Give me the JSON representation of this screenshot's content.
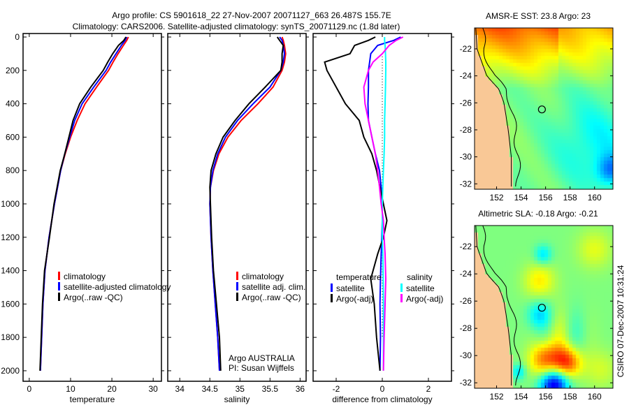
{
  "title_line1": "Argo profile: CS 5901618_22 27-Nov-2007 20071127_663 26.487S 155.7E",
  "title_line2": "Climatology: CARS2006. Satellite-adjusted climatology: synTS_20071129.nc (1.8d later)",
  "footer_stamp": "CSIRO 07-Dec-2007 10:31:24",
  "colors": {
    "climatology": "#ff0000",
    "satellite": "#0000ff",
    "argo": "#000000",
    "sal_satellite": "#00ffff",
    "sal_argo": "#ff00ff",
    "land": "#f9c896"
  },
  "chart_data": [
    {
      "type": "line",
      "id": "temperature",
      "xlabel": "temperature",
      "ylabel": "",
      "xlim": [
        -1.5,
        32
      ],
      "ylim": [
        2063,
        -21
      ],
      "xticks": [
        "0",
        "10",
        "20",
        "30"
      ],
      "xtick_values": [
        0,
        10,
        20,
        30
      ],
      "yticks": [
        "0",
        "200",
        "400",
        "600",
        "800",
        "1000",
        "1200",
        "1400",
        "1600",
        "1800",
        "2000"
      ],
      "ytick_values": [
        0,
        200,
        400,
        600,
        800,
        1000,
        1200,
        1400,
        1600,
        1800,
        2000
      ],
      "legend": [
        "climatology",
        "satellite-adjusted climatology",
        "Argo(..raw -QC)"
      ],
      "depth": [
        0,
        20,
        50,
        100,
        150,
        200,
        300,
        400,
        500,
        600,
        700,
        800,
        1000,
        1200,
        1400,
        1600,
        1800,
        2000
      ],
      "series": [
        {
          "name": "climatology",
          "values": [
            24.0,
            23.6,
            22.8,
            21.5,
            20.3,
            19.2,
            16.3,
            13.5,
            11.6,
            10.0,
            8.7,
            7.6,
            6.1,
            4.8,
            3.8,
            3.3,
            3.0,
            2.7
          ]
        },
        {
          "name": "satellite-adjusted climatology",
          "values": [
            23.6,
            23.2,
            22.3,
            21.0,
            19.7,
            18.6,
            15.6,
            12.8,
            11.0,
            9.8,
            8.6,
            7.6,
            6.1,
            4.8,
            3.8,
            3.3,
            3.0,
            2.7
          ]
        },
        {
          "name": "Argo(..raw -QC)",
          "values": [
            23.4,
            22.9,
            21.6,
            20.2,
            19.0,
            17.9,
            14.9,
            12.2,
            10.6,
            9.6,
            8.6,
            7.5,
            6.0,
            4.9,
            3.7,
            3.2,
            2.9,
            2.6
          ]
        }
      ]
    },
    {
      "type": "line",
      "id": "salinity",
      "xlabel": "salinity",
      "xlim": [
        33.8,
        36.1
      ],
      "ylim": [
        2063,
        -21
      ],
      "xticks": [
        "34",
        "34.5",
        "35",
        "35.5",
        "36"
      ],
      "xtick_values": [
        34,
        34.5,
        35,
        35.5,
        36
      ],
      "legend": [
        "climatology",
        "satellite adj. clim.",
        "Argo(..raw -QC)"
      ],
      "annotation_line1": "Argo AUSTRALIA",
      "annotation_line2": "PI: Susan Wijffels",
      "depth": [
        0,
        20,
        50,
        100,
        150,
        200,
        300,
        400,
        500,
        600,
        700,
        800,
        900,
        1000,
        1200,
        1400,
        1600,
        1800,
        2000
      ],
      "series": [
        {
          "name": "climatology",
          "values": [
            35.7,
            35.72,
            35.74,
            35.76,
            35.74,
            35.7,
            35.55,
            35.3,
            35.02,
            34.8,
            34.65,
            34.56,
            34.51,
            34.5,
            34.52,
            34.55,
            34.59,
            34.63,
            34.66
          ]
        },
        {
          "name": "satellite adj. clim.",
          "values": [
            35.66,
            35.7,
            35.72,
            35.74,
            35.72,
            35.68,
            35.5,
            35.22,
            34.96,
            34.76,
            34.63,
            34.55,
            34.51,
            34.5,
            34.52,
            34.55,
            34.59,
            34.63,
            34.66
          ]
        },
        {
          "name": "Argo(..raw -QC)",
          "values": [
            35.62,
            35.66,
            35.72,
            35.7,
            35.7,
            35.68,
            35.42,
            35.15,
            34.92,
            34.72,
            34.6,
            34.52,
            34.5,
            34.51,
            34.53,
            34.56,
            34.61,
            34.66,
            34.68
          ]
        }
      ]
    },
    {
      "type": "line",
      "id": "difference",
      "xlabel": "difference from climatology",
      "xlim": [
        -3,
        3
      ],
      "ylim": [
        2063,
        -21
      ],
      "xticks": [
        "-2",
        "0",
        "2"
      ],
      "xtick_values": [
        -2,
        0,
        2
      ],
      "legend_temperature_header": "temperature",
      "legend_salinity_header": "salinity",
      "legend": [
        "satellite",
        "Argo(-adj)",
        "satellite",
        "Argo(-adj)"
      ],
      "depth": [
        0,
        20,
        50,
        100,
        150,
        200,
        300,
        400,
        500,
        600,
        700,
        800,
        900,
        1000,
        1100,
        1200,
        1300,
        1450,
        1600,
        1800,
        2000
      ],
      "series": [
        {
          "name": "temperature satellite",
          "values": [
            0.8,
            0.5,
            -0.2,
            -0.5,
            -0.55,
            -0.6,
            -0.6,
            -0.62,
            -0.6,
            -0.45,
            -0.3,
            -0.12,
            -0.05,
            0.0,
            0.0,
            -0.02,
            -0.05,
            -0.08,
            -0.1,
            -0.08,
            -0.1
          ]
        },
        {
          "name": "temperature Argo(-adj)",
          "values": [
            -0.3,
            -0.6,
            -1.2,
            -1.4,
            -2.5,
            -2.4,
            -2.0,
            -1.6,
            -1.0,
            -0.8,
            -0.45,
            -0.25,
            -0.1,
            0.05,
            0.2,
            0.05,
            -0.2,
            -0.5,
            -0.35,
            -0.25,
            -0.1
          ]
        },
        {
          "name": "salinity satellite",
          "values": [
            0.1,
            0.1,
            0.12,
            0.14,
            0.15,
            0.15,
            0.14,
            0.12,
            0.1,
            0.1,
            0.08,
            0.05,
            0.02,
            0.0,
            0.0,
            0.0,
            0.02,
            0.04,
            0.05,
            0.05,
            0.05
          ]
        },
        {
          "name": "salinity Argo(-adj)",
          "values": [
            0.9,
            0.6,
            0.3,
            0.0,
            -0.4,
            -0.6,
            -0.8,
            -0.75,
            -0.6,
            -0.45,
            -0.3,
            -0.2,
            -0.12,
            -0.05,
            0.05,
            0.08,
            0.12,
            0.15,
            0.12,
            0.08,
            0.05
          ]
        }
      ]
    },
    {
      "type": "heatmap",
      "id": "sst_map",
      "title": "AMSR-E SST: 23.8 Argo: 23",
      "xlim": [
        150.2,
        161.5
      ],
      "ylim": [
        -32.4,
        -20.45
      ],
      "xticks": [
        "152",
        "154",
        "156",
        "158",
        "160"
      ],
      "xtick_values": [
        152,
        154,
        156,
        158,
        160
      ],
      "yticks": [
        "-22",
        "-24",
        "-26",
        "-28",
        "-30",
        "-32"
      ],
      "ytick_values": [
        -22,
        -24,
        -26,
        -28,
        -30,
        -32
      ],
      "argo_position": {
        "lon": 155.7,
        "lat": -26.487
      }
    },
    {
      "type": "heatmap",
      "id": "sla_map",
      "title": "Altimetric SLA: -0.18 Argo: -0.21",
      "xlim": [
        150.2,
        161.5
      ],
      "ylim": [
        -32.4,
        -20.45
      ],
      "xticks": [
        "152",
        "154",
        "156",
        "158",
        "160"
      ],
      "xtick_values": [
        152,
        154,
        156,
        158,
        160
      ],
      "yticks": [
        "-22",
        "-24",
        "-26",
        "-28",
        "-30",
        "-32"
      ],
      "ytick_values": [
        -22,
        -24,
        -26,
        -28,
        -30,
        -32
      ],
      "argo_position": {
        "lon": 155.7,
        "lat": -26.487
      }
    }
  ]
}
